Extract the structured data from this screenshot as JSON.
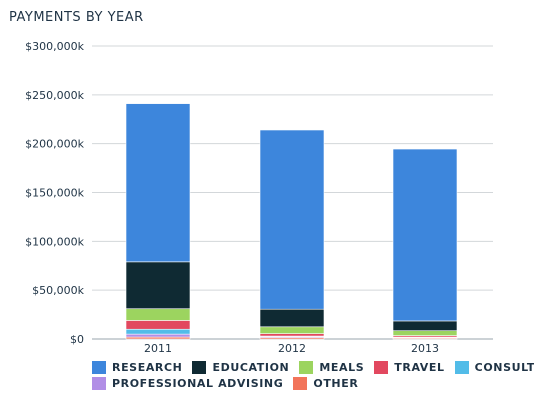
{
  "chart_data": {
    "type": "bar",
    "stacked": true,
    "title": "PAYMENTS BY YEAR",
    "categories": [
      "2011",
      "2012",
      "2013"
    ],
    "ylim": [
      0,
      300000
    ],
    "yticks": [
      0,
      50000,
      100000,
      150000,
      200000,
      250000,
      300000
    ],
    "ytick_labels": [
      "$0",
      "$50,000k",
      "$100,000k",
      "$150,000k",
      "$200,000k",
      "$250,000k",
      "$300,000k"
    ],
    "grid": true,
    "legend_position": "bottom",
    "series": [
      {
        "name": "OTHER",
        "color": "#f2745a",
        "values": [
          2000,
          1500,
          1000
        ]
      },
      {
        "name": "PROFESSIONAL ADVISING",
        "color": "#b18ee6",
        "values": [
          3000,
          1000,
          500
        ]
      },
      {
        "name": "CONSULTING",
        "color": "#52bce8",
        "values": [
          5000,
          500,
          500
        ]
      },
      {
        "name": "TRAVEL",
        "color": "#e2485f",
        "values": [
          9000,
          2500,
          1500
        ]
      },
      {
        "name": "MEALS",
        "color": "#9cd45f",
        "values": [
          12000,
          7000,
          5000
        ]
      },
      {
        "name": "EDUCATION",
        "color": "#0f2a33",
        "values": [
          48000,
          18000,
          10000
        ]
      },
      {
        "name": "RESEARCH",
        "color": "#3d86dc",
        "values": [
          162000,
          183500,
          176000
        ]
      }
    ],
    "legend_rows": [
      [
        "RESEARCH",
        "EDUCATION",
        "MEALS",
        "TRAVEL",
        "CONSULTING"
      ],
      [
        "PROFESSIONAL ADVISING",
        "OTHER"
      ]
    ]
  }
}
